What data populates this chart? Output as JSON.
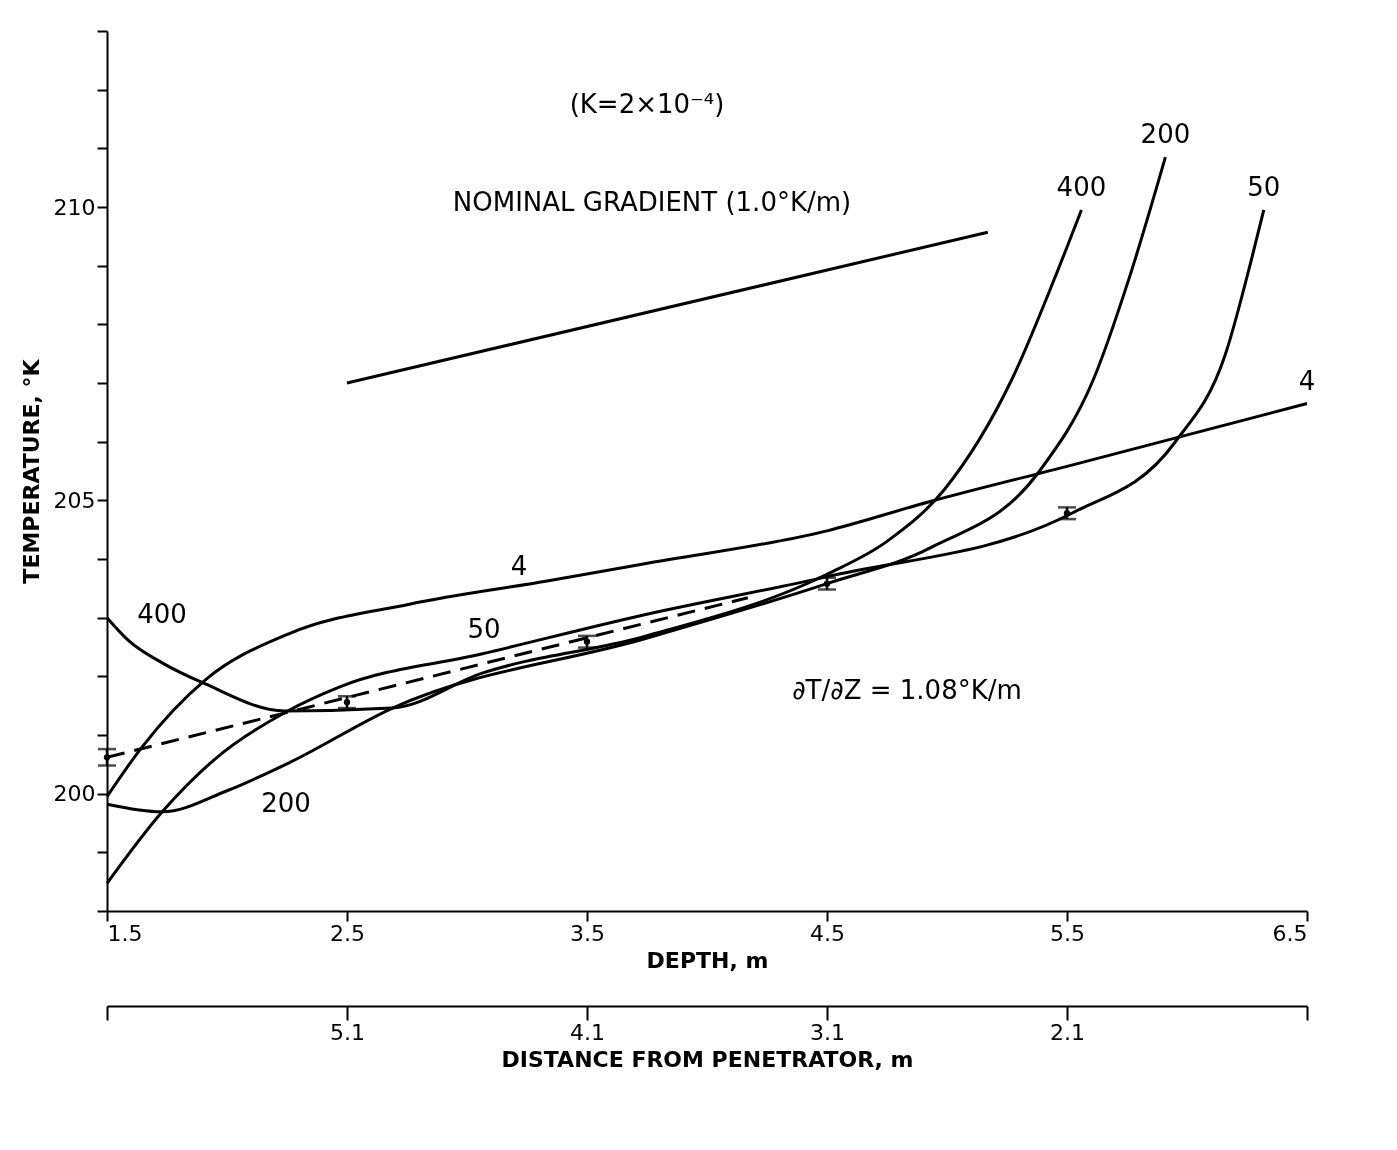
{
  "chart_data": {
    "type": "line",
    "xlabel": "DEPTH, m",
    "ylabel": "TEMPERATURE, °K",
    "x2label": "DISTANCE FROM PENETRATOR, m",
    "xlim": [
      1.5,
      6.5
    ],
    "xticks": [
      1.5,
      2.5,
      3.5,
      4.5,
      5.5,
      6.5
    ],
    "x2lim": [
      6.1,
      1.1
    ],
    "x2ticks": [
      {
        "value": 6.1,
        "label": null
      },
      5.1,
      4.1,
      3.1,
      2.1,
      {
        "value": 1.1,
        "label": null
      }
    ],
    "ylim": [
      198,
      213
    ],
    "yticks": [
      {
        "value": 198,
        "label": null
      },
      {
        "value": 199,
        "label": null
      },
      200,
      {
        "value": 201,
        "label": null
      },
      {
        "value": 202,
        "label": null
      },
      {
        "value": 203,
        "label": null
      },
      {
        "value": 204,
        "label": null
      },
      205,
      {
        "value": 206,
        "label": null
      },
      {
        "value": 207,
        "label": null
      },
      {
        "value": 208,
        "label": null
      },
      {
        "value": 209,
        "label": null
      },
      210,
      {
        "value": 211,
        "label": null
      },
      {
        "value": 212,
        "label": null
      },
      {
        "value": 213,
        "label": null
      }
    ],
    "series": [
      {
        "name": "4",
        "color": "#000000",
        "x": [
          1.5,
          1.645,
          1.91,
          2.26,
          2.76,
          3.34,
          3.74,
          4.5,
          4.93,
          5.52,
          6.5
        ],
        "values": [
          199.95,
          200.79,
          201.94,
          202.73,
          203.23,
          203.63,
          203.92,
          204.48,
          204.98,
          205.6,
          206.65
        ]
      },
      {
        "name": "50",
        "color": "#000000",
        "x": [
          1.5,
          1.73,
          1.95,
          2.24,
          2.47,
          3.06,
          3.74,
          4.5,
          5.52,
          5.95,
          6.16,
          6.27,
          6.32
        ],
        "values": [
          198.47,
          199.69,
          200.59,
          201.38,
          201.82,
          202.38,
          203.05,
          203.7,
          204.78,
          205.99,
          207.49,
          209.13,
          209.95
        ]
      },
      {
        "name": "200",
        "color": "#000000",
        "x": [
          1.5,
          1.73,
          2.0,
          2.26,
          2.69,
          3.74,
          4.5,
          4.93,
          5.38,
          5.61,
          5.76,
          5.91
        ],
        "values": [
          199.82,
          199.69,
          200.05,
          200.53,
          201.46,
          202.64,
          203.58,
          204.19,
          205.47,
          207.06,
          208.8,
          210.85
        ]
      },
      {
        "name": "400",
        "color": "#000000",
        "x": [
          1.5,
          1.59,
          1.73,
          1.91,
          2.24,
          2.69,
          3.06,
          3.74,
          4.5,
          4.75,
          4.99,
          5.27,
          5.45,
          5.56
        ],
        "values": [
          203.0,
          202.61,
          202.23,
          201.87,
          201.41,
          201.46,
          202.05,
          202.68,
          203.74,
          204.3,
          205.19,
          207.06,
          208.8,
          209.95
        ]
      },
      {
        "color": "#000000",
        "x": [
          2.5,
          5.17
        ],
        "values": [
          207.0,
          209.57
        ]
      },
      {
        "line_style": "dashed",
        "color": "#000000",
        "x": [
          1.5,
          4.17
        ],
        "values": [
          200.62,
          203.34
        ]
      },
      {
        "type": "scatter",
        "marker": "circle",
        "color": "#000000",
        "x": [
          1.5,
          2.5,
          3.5,
          4.5,
          5.5
        ],
        "values": [
          200.62,
          201.56,
          202.59,
          203.58,
          204.78
        ],
        "errors": [
          0.14,
          0.1,
          0.1,
          0.1,
          0.1
        ]
      }
    ],
    "annotations": [
      "(K=2×10⁻⁴)",
      "NOMINAL GRADIENT (1.0°K/m)",
      "∂T/∂Z = 1.08°K/m",
      "4",
      "50",
      "200",
      "400"
    ]
  }
}
